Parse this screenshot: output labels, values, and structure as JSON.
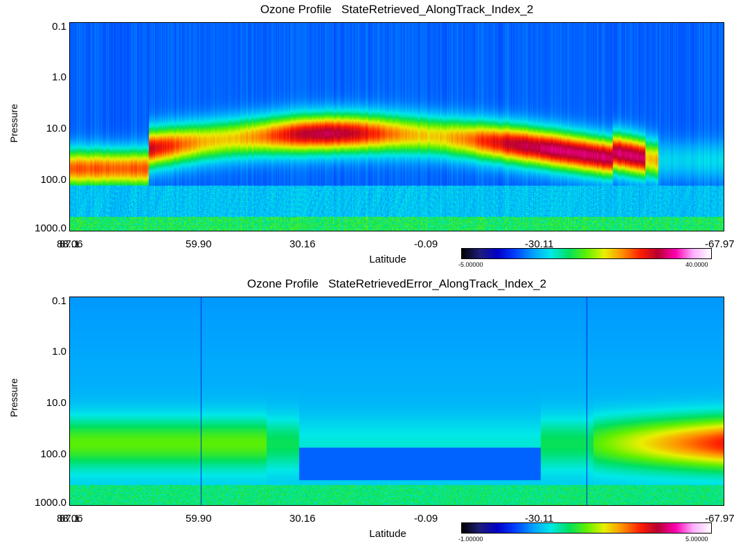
{
  "colors": {
    "scale": [
      "#000000",
      "#1e1e78",
      "#0000c8",
      "#0040ff",
      "#00a0ff",
      "#00e8e8",
      "#00e060",
      "#60f000",
      "#e8f000",
      "#ff9000",
      "#ff2000",
      "#b80030",
      "#ff00b0",
      "#ffb0ff",
      "#ffffff"
    ]
  },
  "chart_data": [
    {
      "type": "heatmap",
      "title": "Ozone Profile   StateRetrieved_AlongTrack_Index_2",
      "xlabel": "Latitude",
      "ylabel": "Pressure",
      "x_ticks": [
        "88.06",
        "87.1",
        "59.90",
        "30.16",
        "-0.09",
        "-30.11",
        "-67.97"
      ],
      "y_ticks": [
        "0.1",
        "1.0",
        "10.0",
        "100.0",
        "1000.0"
      ],
      "y_scale": "log",
      "y_range": [
        0.1,
        1000
      ],
      "x_range": [
        88.06,
        -67.97
      ],
      "colorbar": {
        "min": "-5.00000",
        "max": "40.0000"
      },
      "description_peak_layer_pressure": [
        20,
        60
      ],
      "peak_value_range": [
        30,
        35
      ]
    },
    {
      "type": "heatmap",
      "title": "Ozone Profile   StateRetrievedError_AlongTrack_Index_2",
      "xlabel": "Latitude",
      "ylabel": "Pressure",
      "x_ticks": [
        "88.06",
        "87.1",
        "59.90",
        "30.16",
        "-0.09",
        "-30.11",
        "-67.97"
      ],
      "y_ticks": [
        "0.1",
        "1.0",
        "10.0",
        "100.0",
        "1000.0"
      ],
      "y_scale": "log",
      "y_range": [
        0.1,
        1000
      ],
      "x_range": [
        88.06,
        -67.97
      ],
      "colorbar": {
        "min": "-1.00000",
        "max": "5.00000"
      }
    }
  ]
}
